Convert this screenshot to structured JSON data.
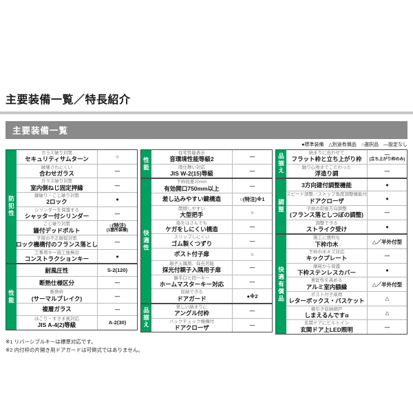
{
  "page": {
    "title": "主要装備一覧／特長紹介",
    "section_header": "主要装備一覧"
  },
  "colors": {
    "category_green": "#00a05f",
    "section_bar_gray": "#8a8a8a",
    "rule_gray": "#c6c6c6"
  },
  "legend": {
    "items": [
      "●標準装備",
      "△別途有償品",
      "○選択品",
      "―設定なし"
    ]
  },
  "notes": [
    "※1 リバーシブルキーは標準対応です。",
    "※2 内付枠の片開き用ドアガードは可倒式ではありません。"
  ],
  "table": {
    "columns": [
      {
        "groups": [
          {
            "category": "防犯性",
            "rows": [
              {
                "sub": "ガラス破り対策",
                "main": "セキュリティサムターン",
                "value": "○"
              },
              {
                "sub": "破壊されにくい",
                "main": "合わせガラス",
                "value": "―"
              },
              {
                "sub": "ガラス破り対策",
                "main": "室内側ねじ固定押縁",
                "value": "―"
              },
              {
                "sub": "鍵破り・こじ破り対策",
                "main": "2ロック",
                "value": "●"
              },
              {
                "sub": "シリンダーを保護する",
                "main": "シャッター付シリンダー",
                "value": "―"
              },
              {
                "sub": "こじ破り対策",
                "main": "鎌付デッドボルト",
                "value": "○(特注)",
                "value2": "(1箇所装備)"
              },
              {
                "sub": "子扉の不正解錠対策",
                "main": "ロック機構付のフランス落とし",
                "value": "―"
              },
              {
                "sub": "工事用キー施工後無効",
                "main": "コンストラクションキー",
                "value": "●"
              }
            ]
          },
          {
            "category": "性能",
            "rows": [
              {
                "main": "耐風圧性",
                "value": "S-2(120)"
              },
              {
                "main": "断熱仕様区分",
                "value": "―"
              },
              {
                "sub": "断熱枠",
                "main": "(サーマルブレイク)",
                "value": "―"
              },
              {
                "main": "複層ガラス",
                "value": "―"
              },
              {
                "sub": "ほこり・すきま風対応",
                "main": "JIS A-4(2)等級",
                "value": "A-2(30)"
              }
            ]
          }
        ]
      },
      {
        "groups": [
          {
            "category": "性能",
            "rows": [
              {
                "sub": "住宅性能表示",
                "main": "音環境性能等級2",
                "value": "―"
              },
              {
                "sub": "雨仕舞い対応",
                "main": "JIS W-2(15)等級",
                "value": "―"
              }
            ]
          },
          {
            "category": "快適性",
            "rows": [
              {
                "sub": "下枠段差20mm",
                "main": "有効開口750mm以上",
                "value": "―"
              },
              {
                "main": "差し込みやすい鍵構造",
                "value": "○(特注)※1"
              },
              {
                "sub": "開閉しやすい",
                "main": "大型把手",
                "value": "○"
              },
              {
                "sub": "指をはさんでも",
                "main": "ケガをしにくい構造",
                "value": "―"
              },
              {
                "sub": "スリップしにくい",
                "main": "ゴム製くつずり",
                "value": "―"
              },
              {
                "main": "ポスト付子扉",
                "value": "○"
              },
              {
                "sub": "親子入隅用、採光可能",
                "main": "採光付親子入隅用子扉",
                "value": "―"
              },
              {
                "sub": "勝手口と同一キー",
                "main": "ホームマスターキー対応",
                "value": "―"
              },
              {
                "sub": "収納できる",
                "main": "ドアガード",
                "value": "●※2"
              }
            ]
          },
          {
            "category": "品揃え",
            "rows": [
              {
                "sub": "美しい納まりに",
                "main": "アングル付枠",
                "value": "―"
              },
              {
                "sub": "バックチェック機構付",
                "main": "ドアクローザ",
                "value": "―"
              }
            ]
          }
        ]
      },
      {
        "groups": [
          {
            "category": "品揃え",
            "rows": [
              {
                "sub": "納まりに合わせて",
                "main": "フラット枠と立ち上がり枠",
                "value": "―",
                "value2": "(立ち上がり枠のみ)"
              },
              {
                "sub": "触り心地までこだわった",
                "main": "浮造り調",
                "value": "―"
              }
            ]
          },
          {
            "category": "調整",
            "rows": [
              {
                "main": "3方向建付調整機能",
                "value": "●"
              },
              {
                "sub": "スピード調整／ストップ角度調整機能付",
                "main": "ドアクローザ",
                "value": "●"
              },
              {
                "sub": "子扉の前後方向調整",
                "main": "(フランス落としつぼの調整)",
                "value": "―"
              },
              {
                "sub": "調整できる",
                "main": "ストライク受け",
                "value": "●"
              }
            ]
          },
          {
            "category": "快適有償品",
            "rows": [
              {
                "sub": "施工に便利な",
                "main": "下枠巾木",
                "value": "△／半外付型"
              },
              {
                "sub": "下枠巾木キズ対応",
                "main": "キックプレート",
                "value": "―"
              },
              {
                "sub": "摩耗から保護",
                "main": "下枠ステンレスカバー",
                "value": "●"
              },
              {
                "sub": "意匠性を高める",
                "main": "アルミ室内額縁",
                "value": "△／半外付型"
              },
              {
                "sub": "ポスト付子扉用",
                "main": "レターボックス・バスケット",
                "value": "△"
              },
              {
                "sub": "横引き収納網戸",
                "main": "しまえるんですα",
                "value": "△"
              },
              {
                "sub": "玄関ドアにビルトイン",
                "main": "玄関ドア上LED照明",
                "value": "―"
              }
            ]
          }
        ]
      }
    ]
  }
}
